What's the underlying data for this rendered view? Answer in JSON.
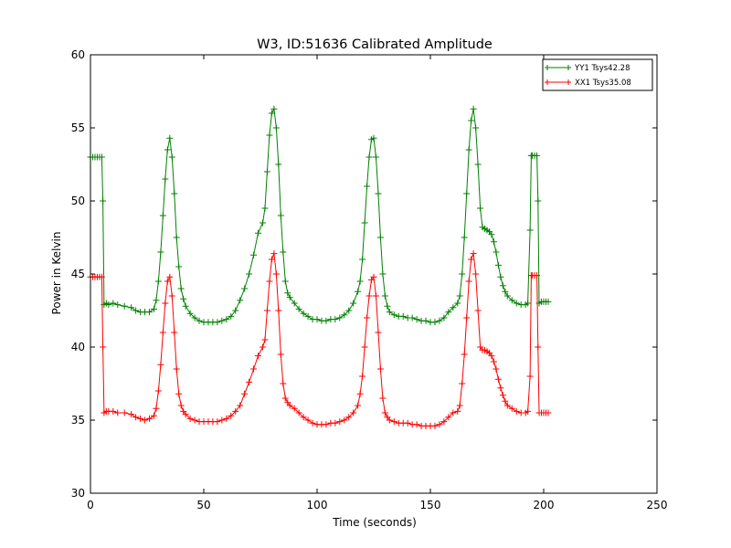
{
  "chart_data": {
    "type": "line",
    "title": "W3, ID:51636 Calibrated Amplitude",
    "xlabel": "Time (seconds)",
    "ylabel": "Power in Kelvin",
    "xlim": [
      0,
      250
    ],
    "ylim": [
      30,
      60
    ],
    "xticks": [
      0,
      50,
      100,
      150,
      200,
      250
    ],
    "yticks": [
      30,
      35,
      40,
      45,
      50,
      55,
      60
    ],
    "grid": false,
    "legend_position": "top-right",
    "series": [
      {
        "name": "YY1 Tsys42.28",
        "color": "#008000",
        "marker": "+",
        "points": [
          [
            0,
            53.0
          ],
          [
            1,
            53.0
          ],
          [
            2,
            53.0
          ],
          [
            3,
            53.0
          ],
          [
            4,
            53.0
          ],
          [
            5,
            53.0
          ],
          [
            5.5,
            50.0
          ],
          [
            6,
            42.9
          ],
          [
            7,
            43.0
          ],
          [
            8,
            42.9
          ],
          [
            10,
            43.0
          ],
          [
            12,
            42.9
          ],
          [
            15,
            42.8
          ],
          [
            18,
            42.7
          ],
          [
            20,
            42.5
          ],
          [
            22,
            42.4
          ],
          [
            24,
            42.4
          ],
          [
            26,
            42.4
          ],
          [
            28,
            42.6
          ],
          [
            29,
            43.2
          ],
          [
            30,
            44.5
          ],
          [
            31,
            46.5
          ],
          [
            32,
            49.0
          ],
          [
            33,
            51.5
          ],
          [
            34,
            53.5
          ],
          [
            35,
            54.3
          ],
          [
            36,
            53.0
          ],
          [
            37,
            50.5
          ],
          [
            38,
            47.5
          ],
          [
            39,
            45.5
          ],
          [
            40,
            44.0
          ],
          [
            41,
            43.3
          ],
          [
            42,
            42.8
          ],
          [
            44,
            42.3
          ],
          [
            46,
            42.0
          ],
          [
            48,
            41.8
          ],
          [
            50,
            41.7
          ],
          [
            52,
            41.7
          ],
          [
            54,
            41.7
          ],
          [
            56,
            41.7
          ],
          [
            58,
            41.8
          ],
          [
            60,
            41.9
          ],
          [
            62,
            42.1
          ],
          [
            64,
            42.5
          ],
          [
            66,
            43.2
          ],
          [
            68,
            44.0
          ],
          [
            70,
            45.0
          ],
          [
            72,
            46.3
          ],
          [
            74,
            47.8
          ],
          [
            76,
            48.5
          ],
          [
            77,
            49.5
          ],
          [
            78,
            52.0
          ],
          [
            79,
            54.5
          ],
          [
            80,
            56.0
          ],
          [
            81,
            56.3
          ],
          [
            82,
            55.0
          ],
          [
            83,
            52.5
          ],
          [
            84,
            49.0
          ],
          [
            85,
            46.5
          ],
          [
            86,
            44.5
          ],
          [
            87,
            43.7
          ],
          [
            88,
            43.4
          ],
          [
            90,
            43.0
          ],
          [
            92,
            42.6
          ],
          [
            94,
            42.3
          ],
          [
            96,
            42.1
          ],
          [
            98,
            41.9
          ],
          [
            100,
            41.9
          ],
          [
            102,
            41.8
          ],
          [
            104,
            41.8
          ],
          [
            106,
            41.9
          ],
          [
            108,
            41.9
          ],
          [
            110,
            42.0
          ],
          [
            112,
            42.2
          ],
          [
            114,
            42.5
          ],
          [
            116,
            43.0
          ],
          [
            118,
            43.8
          ],
          [
            119,
            44.5
          ],
          [
            120,
            46.0
          ],
          [
            121,
            48.5
          ],
          [
            122,
            51.0
          ],
          [
            123,
            53.0
          ],
          [
            124,
            54.2
          ],
          [
            125,
            54.3
          ],
          [
            126,
            53.0
          ],
          [
            127,
            50.5
          ],
          [
            128,
            47.5
          ],
          [
            129,
            45.0
          ],
          [
            130,
            43.5
          ],
          [
            131,
            42.8
          ],
          [
            132,
            42.4
          ],
          [
            134,
            42.2
          ],
          [
            136,
            42.1
          ],
          [
            138,
            42.1
          ],
          [
            140,
            42.0
          ],
          [
            142,
            42.0
          ],
          [
            144,
            41.9
          ],
          [
            146,
            41.8
          ],
          [
            148,
            41.8
          ],
          [
            150,
            41.7
          ],
          [
            152,
            41.7
          ],
          [
            154,
            41.8
          ],
          [
            156,
            42.0
          ],
          [
            158,
            42.4
          ],
          [
            160,
            42.7
          ],
          [
            162,
            43.0
          ],
          [
            163,
            43.5
          ],
          [
            164,
            45.0
          ],
          [
            165,
            47.5
          ],
          [
            166,
            50.5
          ],
          [
            167,
            53.5
          ],
          [
            168,
            55.5
          ],
          [
            169,
            56.3
          ],
          [
            170,
            55.0
          ],
          [
            171,
            52.5
          ],
          [
            172,
            49.5
          ],
          [
            173,
            48.2
          ],
          [
            174,
            48.1
          ],
          [
            175,
            48.0
          ],
          [
            176,
            47.9
          ],
          [
            177,
            47.7
          ],
          [
            178,
            47.2
          ],
          [
            179,
            46.5
          ],
          [
            180,
            45.6
          ],
          [
            181,
            44.8
          ],
          [
            182,
            44.2
          ],
          [
            183,
            43.8
          ],
          [
            184,
            43.5
          ],
          [
            186,
            43.2
          ],
          [
            188,
            43.0
          ],
          [
            190,
            42.9
          ],
          [
            192,
            42.9
          ],
          [
            193,
            43.0
          ],
          [
            194,
            48.0
          ],
          [
            194.5,
            53.1
          ],
          [
            195,
            53.1
          ],
          [
            196,
            53.1
          ],
          [
            197,
            53.1
          ],
          [
            197.5,
            50.0
          ],
          [
            198,
            43.0
          ],
          [
            199,
            43.1
          ],
          [
            200,
            43.1
          ],
          [
            201,
            43.1
          ],
          [
            202,
            43.1
          ]
        ]
      },
      {
        "name": "XX1 Tsys35.08",
        "color": "#ff0000",
        "marker": "+",
        "points": [
          [
            0,
            44.8
          ],
          [
            1,
            44.8
          ],
          [
            2,
            44.8
          ],
          [
            3,
            44.8
          ],
          [
            4,
            44.8
          ],
          [
            5,
            44.8
          ],
          [
            5.5,
            40.0
          ],
          [
            6,
            35.5
          ],
          [
            7,
            35.6
          ],
          [
            8,
            35.6
          ],
          [
            10,
            35.6
          ],
          [
            12,
            35.5
          ],
          [
            15,
            35.5
          ],
          [
            18,
            35.4
          ],
          [
            20,
            35.2
          ],
          [
            22,
            35.1
          ],
          [
            24,
            35.0
          ],
          [
            26,
            35.1
          ],
          [
            28,
            35.3
          ],
          [
            29,
            35.8
          ],
          [
            30,
            37.0
          ],
          [
            31,
            38.8
          ],
          [
            32,
            41.0
          ],
          [
            33,
            43.0
          ],
          [
            34,
            44.5
          ],
          [
            35,
            44.8
          ],
          [
            36,
            43.5
          ],
          [
            37,
            41.0
          ],
          [
            38,
            38.5
          ],
          [
            39,
            36.8
          ],
          [
            40,
            36.0
          ],
          [
            41,
            35.6
          ],
          [
            42,
            35.4
          ],
          [
            44,
            35.1
          ],
          [
            46,
            35.0
          ],
          [
            48,
            34.9
          ],
          [
            50,
            34.9
          ],
          [
            52,
            34.9
          ],
          [
            54,
            34.9
          ],
          [
            56,
            34.9
          ],
          [
            58,
            35.0
          ],
          [
            60,
            35.1
          ],
          [
            62,
            35.3
          ],
          [
            64,
            35.6
          ],
          [
            66,
            36.0
          ],
          [
            68,
            36.8
          ],
          [
            70,
            37.6
          ],
          [
            72,
            38.5
          ],
          [
            74,
            39.4
          ],
          [
            76,
            40.0
          ],
          [
            77,
            40.5
          ],
          [
            78,
            42.5
          ],
          [
            79,
            44.5
          ],
          [
            80,
            46.0
          ],
          [
            81,
            46.4
          ],
          [
            82,
            45.0
          ],
          [
            83,
            42.5
          ],
          [
            84,
            39.5
          ],
          [
            85,
            37.5
          ],
          [
            86,
            36.5
          ],
          [
            87,
            36.2
          ],
          [
            88,
            36.0
          ],
          [
            90,
            35.8
          ],
          [
            92,
            35.5
          ],
          [
            94,
            35.2
          ],
          [
            96,
            35.0
          ],
          [
            98,
            34.8
          ],
          [
            100,
            34.7
          ],
          [
            102,
            34.7
          ],
          [
            104,
            34.7
          ],
          [
            106,
            34.8
          ],
          [
            108,
            34.8
          ],
          [
            110,
            34.9
          ],
          [
            112,
            35.0
          ],
          [
            114,
            35.2
          ],
          [
            116,
            35.5
          ],
          [
            118,
            36.0
          ],
          [
            119,
            36.8
          ],
          [
            120,
            38.0
          ],
          [
            121,
            40.0
          ],
          [
            122,
            42.0
          ],
          [
            123,
            43.5
          ],
          [
            124,
            44.6
          ],
          [
            125,
            44.8
          ],
          [
            126,
            43.5
          ],
          [
            127,
            41.0
          ],
          [
            128,
            38.5
          ],
          [
            129,
            36.5
          ],
          [
            130,
            35.5
          ],
          [
            131,
            35.2
          ],
          [
            132,
            35.0
          ],
          [
            134,
            34.9
          ],
          [
            136,
            34.8
          ],
          [
            138,
            34.8
          ],
          [
            140,
            34.8
          ],
          [
            142,
            34.7
          ],
          [
            144,
            34.7
          ],
          [
            146,
            34.6
          ],
          [
            148,
            34.6
          ],
          [
            150,
            34.6
          ],
          [
            152,
            34.6
          ],
          [
            154,
            34.7
          ],
          [
            156,
            34.9
          ],
          [
            158,
            35.2
          ],
          [
            160,
            35.5
          ],
          [
            162,
            35.6
          ],
          [
            163,
            36.0
          ],
          [
            164,
            37.5
          ],
          [
            165,
            39.5
          ],
          [
            166,
            42.0
          ],
          [
            167,
            44.5
          ],
          [
            168,
            46.0
          ],
          [
            169,
            46.4
          ],
          [
            170,
            45.0
          ],
          [
            171,
            42.5
          ],
          [
            172,
            40.0
          ],
          [
            173,
            39.8
          ],
          [
            174,
            39.8
          ],
          [
            175,
            39.7
          ],
          [
            176,
            39.6
          ],
          [
            177,
            39.4
          ],
          [
            178,
            39.0
          ],
          [
            179,
            38.5
          ],
          [
            180,
            37.8
          ],
          [
            181,
            37.2
          ],
          [
            182,
            36.7
          ],
          [
            183,
            36.3
          ],
          [
            184,
            36.0
          ],
          [
            186,
            35.8
          ],
          [
            188,
            35.6
          ],
          [
            190,
            35.5
          ],
          [
            192,
            35.5
          ],
          [
            193,
            35.6
          ],
          [
            194,
            38.0
          ],
          [
            194.5,
            44.9
          ],
          [
            195,
            44.9
          ],
          [
            196,
            44.9
          ],
          [
            197,
            44.9
          ],
          [
            197.5,
            40.0
          ],
          [
            198,
            35.5
          ],
          [
            199,
            35.5
          ],
          [
            200,
            35.5
          ],
          [
            201,
            35.5
          ],
          [
            202,
            35.5
          ]
        ]
      }
    ]
  }
}
